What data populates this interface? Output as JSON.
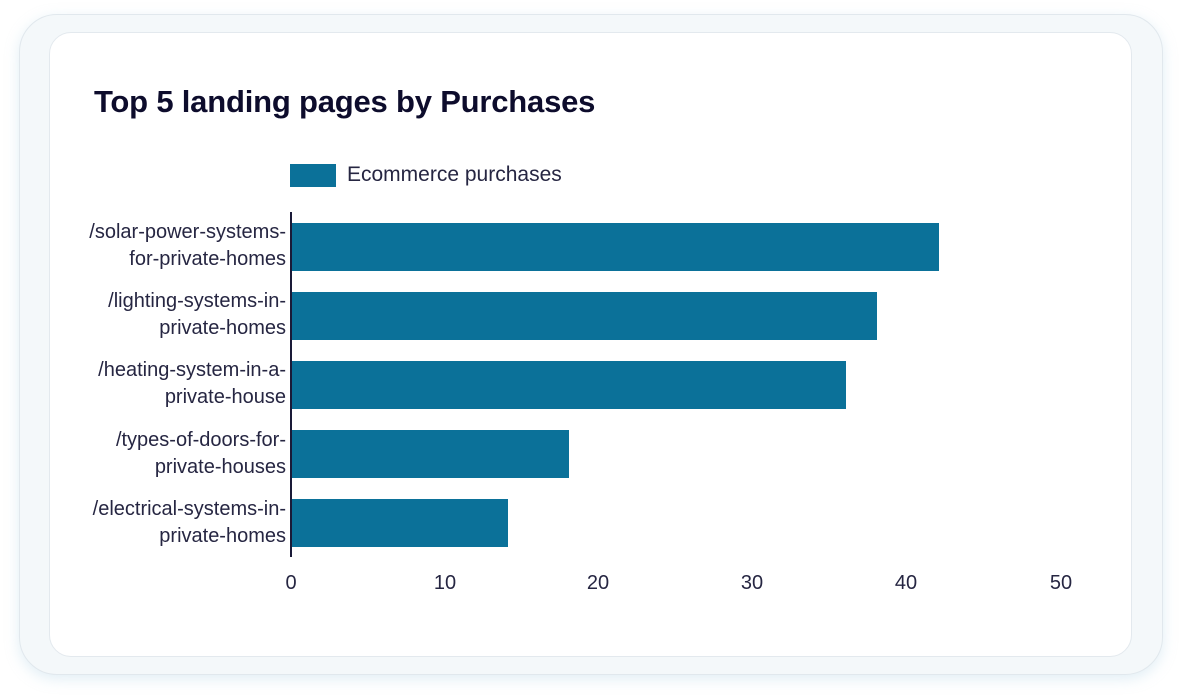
{
  "chart_data": {
    "type": "bar",
    "orientation": "horizontal",
    "title": "Top 5 landing pages by Purchases",
    "xlabel": "",
    "ylabel": "",
    "categories": [
      "/solar-power-systems-for-private-homes",
      "/lighting-systems-in-private-homes",
      "/heating-system-in-a-private-house",
      "/types-of-doors-for-private-houses",
      "/electrical-systems-in-private-homes"
    ],
    "series": [
      {
        "name": "Ecommerce purchases",
        "color": "#0b7199",
        "values": [
          42,
          38,
          36,
          18,
          14
        ]
      }
    ],
    "xlim": [
      0,
      50
    ],
    "xticks": [
      0,
      10,
      20,
      30,
      40,
      50
    ],
    "grid": false,
    "legend_position": "top-left"
  },
  "card": {
    "title": "Top 5 landing pages by Purchases"
  },
  "legend": {
    "label": "Ecommerce purchases"
  },
  "labels": [
    {
      "line1": "/solar-power-systems-",
      "line2": "for-private-homes"
    },
    {
      "line1": "/lighting-systems-in-",
      "line2": "private-homes"
    },
    {
      "line1": "/heating-system-in-a-",
      "line2": "private-house"
    },
    {
      "line1": "/types-of-doors-for-",
      "line2": "private-houses"
    },
    {
      "line1": "/electrical-systems-in-",
      "line2": "private-homes"
    }
  ],
  "ticks": [
    "0",
    "10",
    "20",
    "30",
    "40",
    "50"
  ]
}
